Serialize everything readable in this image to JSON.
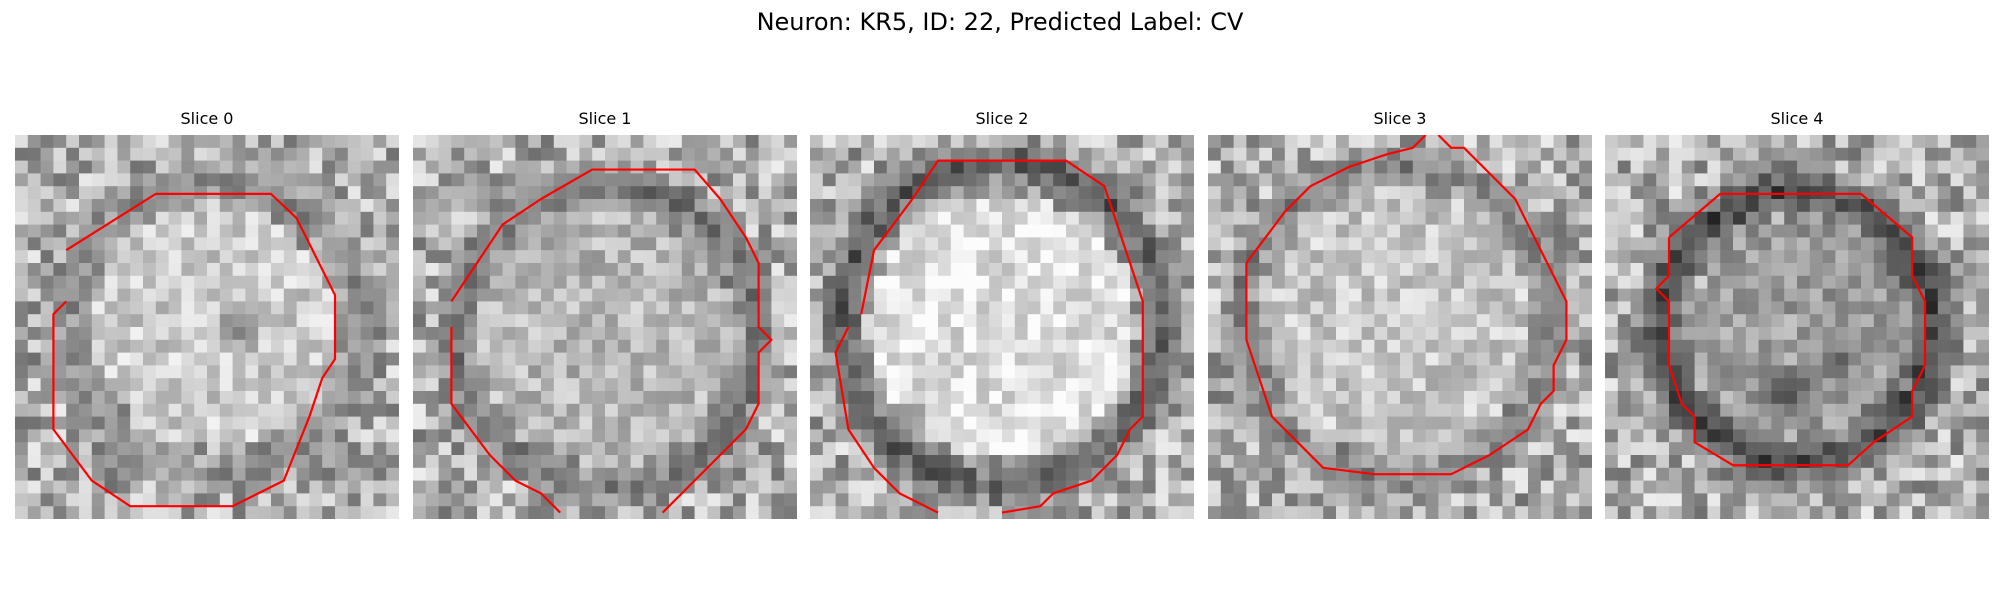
{
  "figure": {
    "title": "Neuron: KR5, ID: 22, Predicted Label: CV"
  },
  "panels": [
    {
      "title": "Slice 0",
      "description": "grayscale EM crop of vesicle with red segmentation contour",
      "contour_color": "#ff0000"
    },
    {
      "title": "Slice 1",
      "description": "grayscale EM crop of vesicle with red segmentation contour",
      "contour_color": "#ff0000"
    },
    {
      "title": "Slice 2",
      "description": "grayscale EM crop of vesicle with red segmentation contour",
      "contour_color": "#ff0000"
    },
    {
      "title": "Slice 3",
      "description": "grayscale EM crop of vesicle with red segmentation contour",
      "contour_color": "#ff0000"
    },
    {
      "title": "Slice 4",
      "description": "grayscale EM crop of vesicle with red segmentation contour",
      "contour_color": "#ff0000"
    }
  ]
}
